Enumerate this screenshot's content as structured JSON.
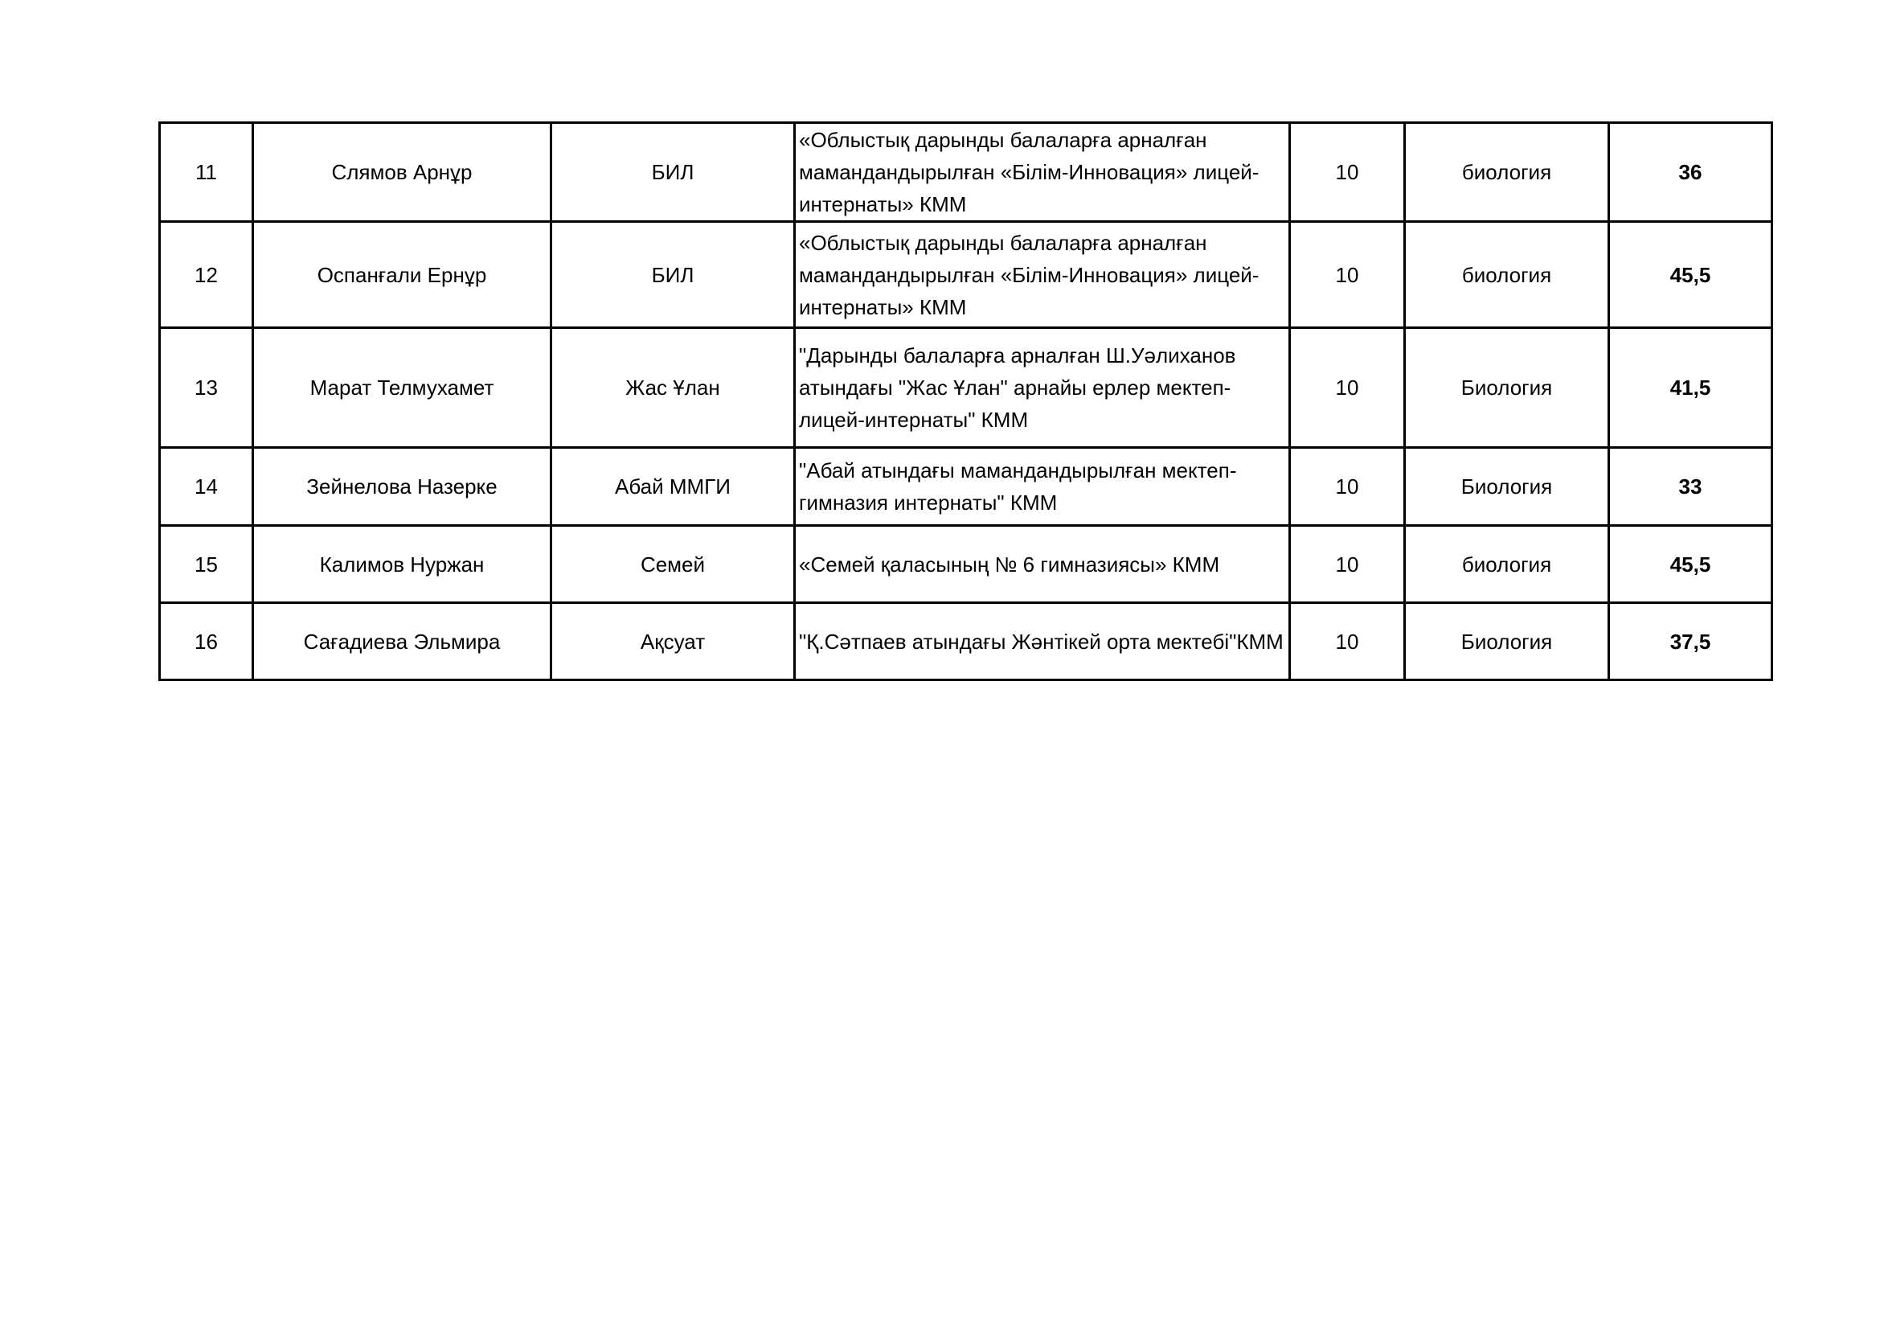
{
  "rows": [
    {
      "no": "11",
      "name": "Слямов Арнұр",
      "short": "БИЛ",
      "school": "«Облыстық дарынды балаларға арналған мамандандырылған «Білім-Инновация» лицей-интернаты» КММ",
      "grade": "10",
      "subject": "биология",
      "score": "36"
    },
    {
      "no": "12",
      "name": "Оспанғали Ернұр",
      "short": "БИЛ",
      "school": "«Облыстық дарынды балаларға арналған мамандандырылған «Білім-Инновация» лицей-интернаты» КММ",
      "grade": "10",
      "subject": "биология",
      "score": "45,5"
    },
    {
      "no": "13",
      "name": "Марат Телмухамет",
      "short": "Жас Ұлан",
      "school": "\"Дарынды балаларға арналған Ш.Уәлиханов атындағы \"Жас Ұлан\" арнайы ерлер мектеп-лицей-интернаты\" КММ",
      "grade": "10",
      "subject": "Биология",
      "score": "41,5"
    },
    {
      "no": "14",
      "name": "Зейнелова Назерке",
      "short": "Абай ММГИ",
      "school": "\"Абай атындағы мамандандырылған мектеп-гимназия интернаты\" КММ",
      "grade": "10",
      "subject": "Биология",
      "score": "33"
    },
    {
      "no": "15",
      "name": "Калимов Нуржан",
      "short": "Семей",
      "school": "«Семей қаласының № 6 гимназиясы» КММ",
      "grade": "10",
      "subject": "биология",
      "score": "45,5"
    },
    {
      "no": "16",
      "name": "Сағадиева Эльмира",
      "short": "Ақсуат",
      "school": "\"Қ.Сәтпаев атындағы Жәнтікей орта мектебі\"КММ",
      "grade": "10",
      "subject": "Биология",
      "score": "37,5"
    }
  ]
}
